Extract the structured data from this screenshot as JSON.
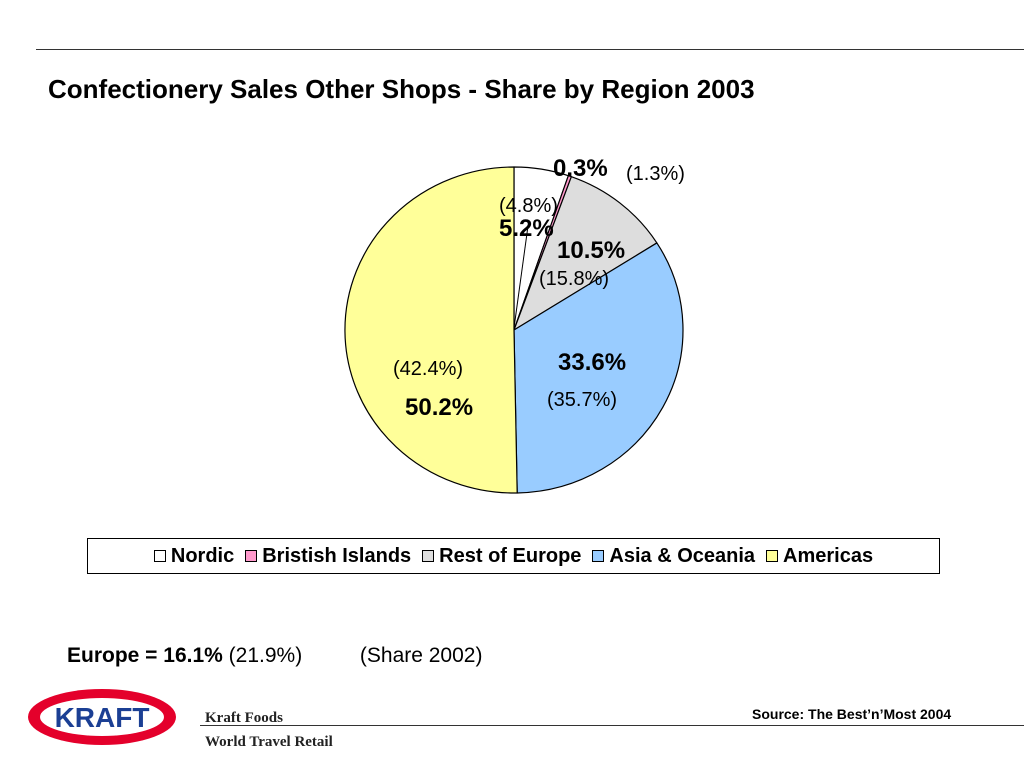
{
  "title": "Confectionery Sales Other Shops - Share by Region 2003",
  "chart_data": {
    "type": "pie",
    "title": "Confectionery Sales Other Shops - Share by Region 2003",
    "slices": [
      {
        "name": "Nordic",
        "value": 5.2,
        "label": "5.2%",
        "prev_label": "(4.8%)",
        "color": "#ffffff"
      },
      {
        "name": "Bristish Islands",
        "value": 0.3,
        "label": "0.3%",
        "prev_label": "(1.3%)",
        "color": "#ff99cc"
      },
      {
        "name": "Rest of Europe",
        "value": 10.5,
        "label": "10.5%",
        "prev_label": "(15.8%)",
        "color": "#dddddd"
      },
      {
        "name": "Asia & Oceania",
        "value": 33.6,
        "label": "33.6%",
        "prev_label": "(35.7%)",
        "color": "#99ccff"
      },
      {
        "name": "Americas",
        "value": 50.2,
        "label": "50.2%",
        "prev_label": "(42.4%)",
        "color": "#ffff99"
      }
    ],
    "legend_position": "bottom",
    "start_angle_deg": 0,
    "direction": "clockwise"
  },
  "summary": {
    "europe_label": "Europe = 16.1%",
    "europe_prev": "(21.9%)",
    "share_note": "(Share 2002)"
  },
  "footer": {
    "logo_text": "KRAFT",
    "company_line1": "Kraft Foods",
    "company_line2": "World Travel Retail",
    "source": "Source: The Best’n’Most 2004"
  }
}
